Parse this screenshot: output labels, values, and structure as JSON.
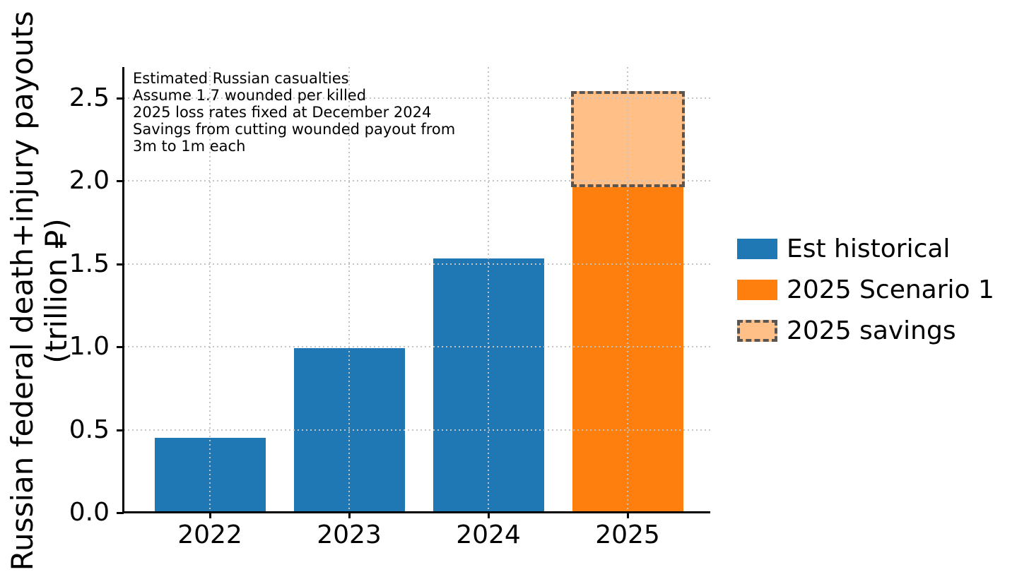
{
  "figure": {
    "annotation": "Estimated Russian casualties\nAssume 1.7 wounded per killed\n2025 loss rates fixed at December 2024\nSavings from cutting wounded payout from\n3m to 1m each",
    "ylabel": "Russian federal death+injury payouts\n(trillion ₽)"
  },
  "chart_data": {
    "type": "bar",
    "categories": [
      "2022",
      "2023",
      "2024",
      "2025"
    ],
    "series": [
      {
        "name": "Est historical",
        "color": "#1f77b4",
        "swatch": "solid",
        "values": [
          0.45,
          0.99,
          1.53,
          null
        ]
      },
      {
        "name": "2025 Scenario 1",
        "color": "#ff7f0e",
        "swatch": "solid",
        "values": [
          null,
          null,
          null,
          1.97
        ]
      },
      {
        "name": "2025 savings",
        "color": "#ffbf86",
        "swatch": "dashed",
        "edge_color": "#5a5550",
        "stacked": true,
        "values": [
          null,
          null,
          null,
          0.56
        ]
      }
    ],
    "title": "",
    "xlabel": "",
    "ylabel": "Russian federal death+injury payouts (trillion ₽)",
    "ytick_labels": [
      "0.0",
      "0.5",
      "1.0",
      "1.5",
      "2.0",
      "2.5"
    ],
    "ylim": [
      0,
      2.68
    ],
    "grid": {
      "style": "dotted",
      "color": "#c4c4c4",
      "axes": "both",
      "on_top": true
    },
    "legend": {
      "position": "outside-right",
      "frame": false
    },
    "annotation": "Estimated Russian casualties\nAssume 1.7 wounded per killed\n2025 loss rates fixed at December 2024\nSavings from cutting wounded payout from\n3m to 1m each"
  }
}
